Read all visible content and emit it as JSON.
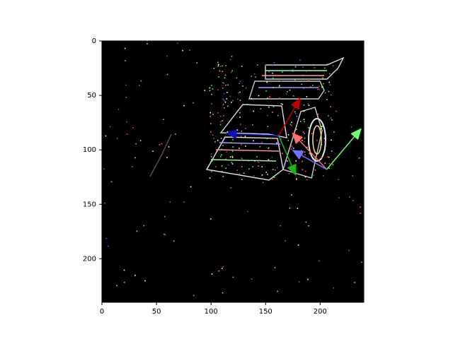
{
  "chart_data": {
    "type": "image",
    "title": "",
    "xlabel": "",
    "ylabel": "",
    "xlim": [
      0,
      240
    ],
    "ylim": [
      240,
      0
    ],
    "y_inverted": true,
    "grid": false,
    "legend": "none",
    "background": "#000000",
    "x_ticks": [
      0,
      50,
      100,
      150,
      200
    ],
    "y_ticks": [
      0,
      50,
      100,
      150,
      200
    ],
    "x_tick_labels": [
      "0",
      "50",
      "100",
      "150",
      "200"
    ],
    "y_tick_labels": [
      "0",
      "50",
      "100",
      "150",
      "200"
    ],
    "arrows": [
      {
        "name": "red",
        "color": "#c00000",
        "start": [
          162,
          87
        ],
        "end": [
          182,
          52
        ]
      },
      {
        "name": "green",
        "color": "#20b020",
        "start": [
          162,
          87
        ],
        "end": [
          178,
          124
        ]
      },
      {
        "name": "blue",
        "color": "#1010c0",
        "start": [
          162,
          87
        ],
        "end": [
          113,
          85
        ]
      },
      {
        "name": "light-red",
        "color": "#ff7070",
        "start": [
          206,
          118
        ],
        "end": [
          174,
          84
        ]
      },
      {
        "name": "light-green",
        "color": "#70ff70",
        "start": [
          206,
          118
        ],
        "end": [
          238,
          80
        ]
      },
      {
        "name": "light-blue",
        "color": "#7070ff",
        "start": [
          206,
          118
        ],
        "end": [
          174,
          100
        ]
      }
    ]
  }
}
